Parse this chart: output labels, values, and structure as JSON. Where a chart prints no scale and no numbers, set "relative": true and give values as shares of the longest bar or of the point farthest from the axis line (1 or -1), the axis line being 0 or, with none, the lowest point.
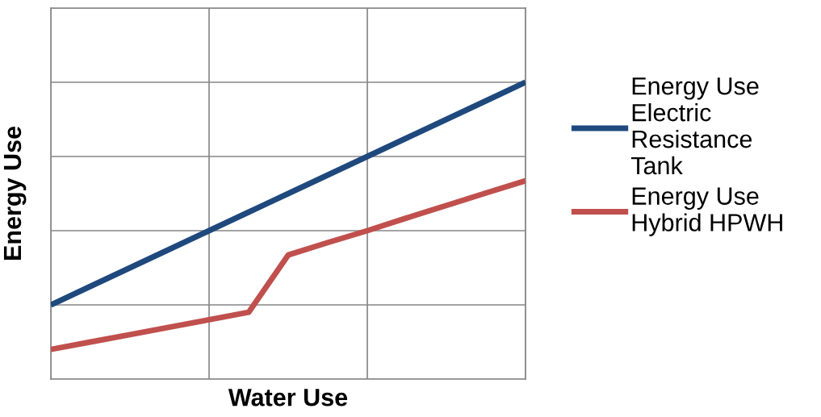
{
  "chart_data": {
    "type": "line",
    "relative": true,
    "xlabel": "Water Use",
    "ylabel": "Energy Use",
    "categories": [
      null,
      null,
      null,
      null,
      null,
      null,
      null,
      null,
      null,
      null,
      null,
      null,
      null
    ],
    "series": [
      {
        "name": "Energy Use\nElectric\nResistance\nTank",
        "color": "#1f497d",
        "values": [
          0.25,
          0.3125,
          0.375,
          0.4375,
          0.5,
          0.5625,
          0.625,
          0.6875,
          0.75,
          0.8125,
          0.875,
          0.9375,
          1.0
        ]
      },
      {
        "name": "Energy Use\nHybrid HPWH",
        "color": "#c0504d",
        "values": [
          0.1,
          0.125,
          0.15,
          0.175,
          0.2,
          0.225,
          0.418,
          0.46,
          0.5,
          0.543,
          0.585,
          0.627,
          0.668
        ]
      }
    ],
    "grid": true,
    "legend": "right",
    "marker": "none",
    "line_style": "solid"
  }
}
